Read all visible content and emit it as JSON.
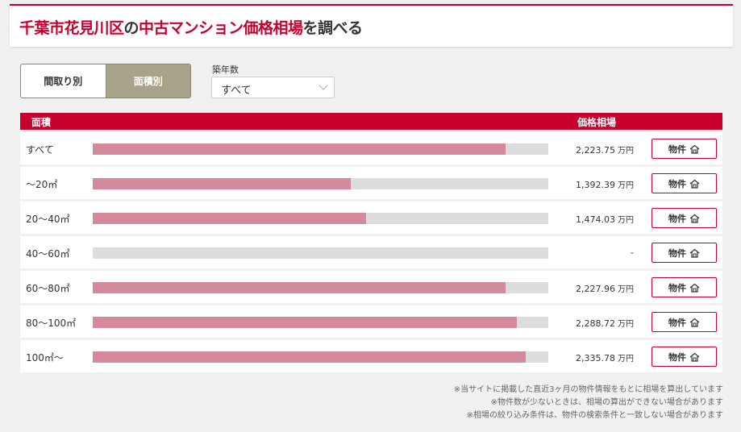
{
  "title": {
    "part1": "千葉市花見川区",
    "part2": "の",
    "part3": "中古マンション価格相場",
    "part4": "を調べる"
  },
  "toggle": {
    "options": [
      "間取り別",
      "面積別"
    ],
    "active_index": 1
  },
  "filter": {
    "label": "築年数",
    "value": "すべて"
  },
  "table": {
    "header_area": "面積",
    "header_price": "価格相場",
    "unit": "万円",
    "button_label": "物件",
    "rows": [
      {
        "label": "すべて",
        "price": "2,223.75",
        "fill": 0.906
      },
      {
        "label": "～20㎡",
        "price": "1,392.39",
        "fill": 0.566
      },
      {
        "label": "20～40㎡",
        "price": "1,474.03",
        "fill": 0.6
      },
      {
        "label": "40～60㎡",
        "price": "-",
        "fill": 0
      },
      {
        "label": "60～80㎡",
        "price": "2,227.96",
        "fill": 0.906
      },
      {
        "label": "80～100㎡",
        "price": "2,288.72",
        "fill": 0.931
      },
      {
        "label": "100㎡～",
        "price": "2,335.78",
        "fill": 0.95
      }
    ]
  },
  "notes": [
    "※当サイトに掲載した直近3ヶ月の物件情報をもとに相場を算出しています",
    "※物件数が少ないときは、相場の算出ができない場合があります",
    "※相場の絞り込み条件は、物件の検索条件と一致しない場合があります"
  ],
  "colors": {
    "brand_red": "#c8002e",
    "bar_fill": "#d48a9a",
    "bar_track": "#dddddd",
    "toggle_active": "#a8a288"
  },
  "icons": {
    "select_arrow": "chevron-down-icon",
    "property_button": "house-icon"
  }
}
